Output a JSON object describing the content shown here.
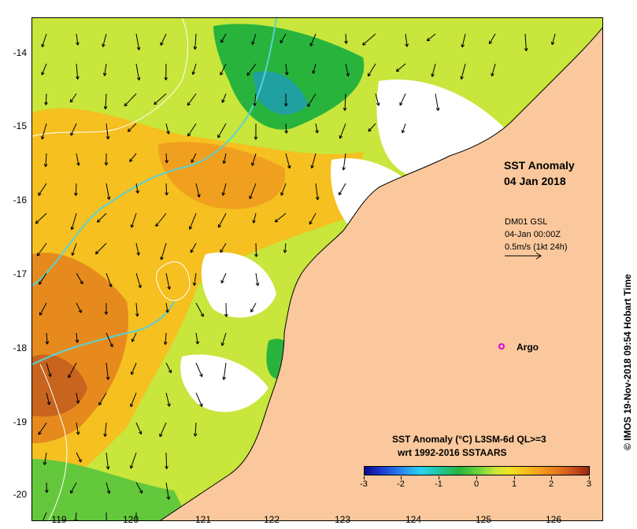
{
  "map": {
    "title_line1": "SST Anomaly",
    "title_line2": "04 Jan 2018",
    "y_axis_labels": [
      "-14",
      "-15",
      "-16",
      "-17",
      "-18",
      "-19",
      "-20"
    ],
    "x_axis_labels": [
      "119",
      "120",
      "121",
      "122",
      "123",
      "124",
      "125",
      "126"
    ],
    "lat_range": [
      -20.05,
      -13.6
    ],
    "lon_range": [
      118.6,
      126.6
    ]
  },
  "current_info": {
    "source": "DM01 GSL",
    "time": "04-Jan 00:00Z",
    "scale": "0.5m/s (1kt 24h)"
  },
  "argo": {
    "label": "Argo",
    "color": "#e000e0"
  },
  "colorbar": {
    "title": "SST Anomaly (°C) L3SM-6d QL>=3",
    "subtitle": "wrt 1992-2016 SSTAARS",
    "ticks": [
      "-3",
      "-2",
      "-1",
      "0",
      "1",
      "2",
      "3"
    ],
    "range": [
      -3,
      3
    ]
  },
  "copyright": "© IMOS 19-Nov-2018 09:54 Hobart Time",
  "colors": {
    "land": "#fac89c",
    "warm_anomaly": "#f5a01e",
    "neutral_anomaly": "#c8e63c",
    "cool_anomaly": "#28b43c",
    "contour": "#5ad2d2"
  }
}
